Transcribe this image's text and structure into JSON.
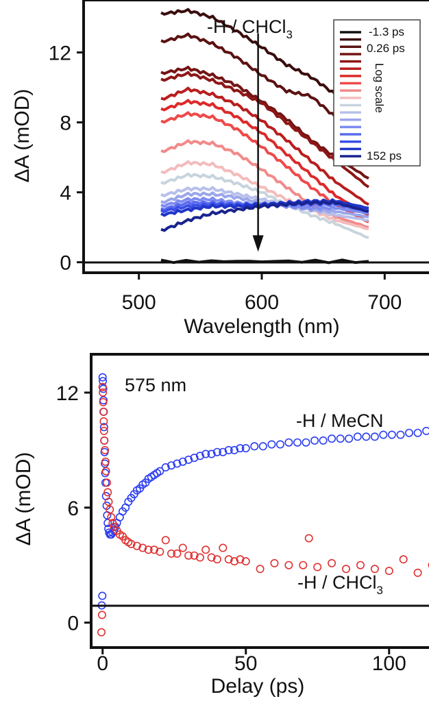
{
  "chart_data": [
    {
      "type": "line",
      "xlabel": "Wavelength (nm)",
      "ylabel": "ΔA (mOD)",
      "xlim": [
        455,
        745
      ],
      "ylim": [
        -0.6,
        15
      ],
      "xticks": [
        500,
        600,
        700
      ],
      "yticks": [
        0,
        4,
        8,
        12
      ],
      "grid": false,
      "legend": "top-right",
      "annotation": {
        "prefix": "-H / CHCl",
        "sub": "3"
      },
      "arrow": {
        "x": 597,
        "y_from": 13.1,
        "y_to": 0.6
      },
      "legend_items": {
        "top": "-1.3 ps",
        "second": "0.26 ps",
        "middle": "Log scale",
        "bottom": "152 ps"
      },
      "series": [
        {
          "color": "#111111",
          "flat": 0.05,
          "x": [
            518,
            600,
            687
          ],
          "values": [
            0.05,
            0.05,
            0.05
          ]
        },
        {
          "color": "#3a0d0d",
          "x": [
            518,
            540,
            560,
            580,
            600,
            620,
            640,
            660,
            687
          ],
          "values": [
            14.2,
            14.4,
            14.0,
            13.2,
            12.3,
            11.3,
            10.6,
            9.6,
            7.3
          ]
        },
        {
          "color": "#5b1212",
          "x": [
            518,
            540,
            560,
            580,
            600,
            620,
            640,
            660,
            687
          ],
          "values": [
            12.6,
            13.0,
            12.5,
            11.7,
            10.7,
            9.8,
            9.5,
            8.3,
            6.7
          ]
        },
        {
          "color": "#741414",
          "x": [
            518,
            540,
            560,
            580,
            600,
            620,
            640,
            660,
            687
          ],
          "values": [
            10.8,
            11.1,
            10.7,
            10.1,
            9.2,
            8.2,
            7.0,
            6.0,
            4.8
          ]
        },
        {
          "color": "#8e1616",
          "x": [
            518,
            540,
            560,
            580,
            600,
            620,
            640,
            660,
            687
          ],
          "values": [
            10.4,
            10.8,
            10.4,
            9.8,
            9.1,
            8.0,
            6.9,
            5.8,
            4.3
          ]
        },
        {
          "color": "#b81e1e",
          "x": [
            518,
            540,
            560,
            580,
            600,
            620,
            640,
            660,
            687
          ],
          "values": [
            9.3,
            9.9,
            9.6,
            9.0,
            8.1,
            7.0,
            5.8,
            4.6,
            3.3
          ]
        },
        {
          "color": "#dc2a2a",
          "x": [
            518,
            540,
            560,
            580,
            600,
            620,
            640,
            660,
            687
          ],
          "values": [
            8.7,
            9.2,
            9.0,
            8.3,
            7.4,
            6.2,
            5.0,
            3.8,
            2.7
          ]
        },
        {
          "color": "#ee4a4a",
          "x": [
            518,
            540,
            560,
            580,
            600,
            620,
            640,
            660,
            687
          ],
          "values": [
            8.0,
            8.5,
            8.3,
            7.6,
            6.6,
            5.5,
            4.3,
            3.3,
            2.3
          ]
        },
        {
          "color": "#f18a8a",
          "x": [
            518,
            540,
            560,
            580,
            600,
            620,
            640,
            660,
            687
          ],
          "values": [
            6.3,
            6.9,
            6.8,
            6.2,
            5.3,
            4.3,
            3.3,
            2.6,
            2.0
          ]
        },
        {
          "color": "#f3bcbc",
          "x": [
            518,
            540,
            560,
            580,
            600,
            620,
            640,
            660,
            687
          ],
          "values": [
            5.1,
            5.7,
            5.6,
            5.0,
            4.3,
            3.6,
            3.0,
            2.4,
            1.9
          ]
        },
        {
          "color": "#c8d4dd",
          "x": [
            518,
            540,
            560,
            580,
            600,
            620,
            640,
            660,
            687
          ],
          "values": [
            4.5,
            5.0,
            4.9,
            4.5,
            4.0,
            3.3,
            2.7,
            2.2,
            1.4
          ]
        },
        {
          "color": "#b7c0ea",
          "x": [
            518,
            540,
            560,
            580,
            600,
            620,
            640,
            660,
            687
          ],
          "values": [
            3.8,
            4.2,
            4.2,
            3.9,
            3.6,
            3.3,
            3.0,
            2.7,
            2.4
          ]
        },
        {
          "color": "#9aa6ea",
          "x": [
            518,
            540,
            560,
            580,
            600,
            620,
            640,
            660,
            687
          ],
          "values": [
            3.4,
            3.9,
            3.9,
            3.7,
            3.4,
            3.2,
            3.0,
            2.9,
            2.6
          ]
        },
        {
          "color": "#7d8bf0",
          "x": [
            518,
            540,
            560,
            580,
            600,
            620,
            640,
            660,
            687
          ],
          "values": [
            3.2,
            3.6,
            3.6,
            3.4,
            3.3,
            3.2,
            3.1,
            3.1,
            2.8
          ]
        },
        {
          "color": "#5a6bef",
          "x": [
            518,
            540,
            560,
            580,
            600,
            620,
            640,
            660,
            687
          ],
          "values": [
            3.0,
            3.4,
            3.4,
            3.3,
            3.3,
            3.3,
            3.3,
            3.3,
            2.9
          ]
        },
        {
          "color": "#3a4fe6",
          "x": [
            518,
            540,
            560,
            580,
            600,
            620,
            640,
            660,
            687
          ],
          "values": [
            2.9,
            3.2,
            3.3,
            3.3,
            3.3,
            3.4,
            3.4,
            3.4,
            3.0
          ]
        },
        {
          "color": "#2035c8",
          "x": [
            518,
            540,
            560,
            580,
            600,
            620,
            640,
            660,
            687
          ],
          "values": [
            2.7,
            3.0,
            3.2,
            3.2,
            3.3,
            3.4,
            3.5,
            3.5,
            3.1
          ]
        },
        {
          "color": "#18238f",
          "x": [
            518,
            540,
            560,
            580,
            600,
            620,
            640,
            660,
            687
          ],
          "values": [
            1.8,
            2.4,
            2.8,
            3.0,
            3.2,
            3.3,
            3.4,
            3.4,
            2.9
          ]
        }
      ]
    },
    {
      "type": "scatter",
      "xlabel": "Delay (ps)",
      "ylabel": "ΔA (mOD)",
      "xlim": [
        -4,
        118
      ],
      "ylim": [
        -1.3,
        14
      ],
      "xticks": [
        0,
        50,
        100
      ],
      "yticks": [
        0,
        6,
        12
      ],
      "grid": false,
      "annotation": "575 nm",
      "series_labels": [
        {
          "text": "-H / MeCN"
        },
        {
          "prefix": "-H / CHCl",
          "sub": "3"
        }
      ],
      "series": [
        {
          "color": "#2a3cf0",
          "x": [
            -0.3,
            -0.1,
            0.0,
            0.1,
            0.2,
            0.3,
            0.4,
            0.5,
            0.6,
            0.7,
            0.8,
            0.9,
            1.0,
            1.2,
            1.4,
            1.6,
            1.8,
            2.0,
            2.3,
            2.6,
            3.0,
            3.5,
            4.0,
            4.5,
            5,
            6,
            7,
            8,
            9,
            10,
            11,
            12,
            13,
            14,
            15,
            16,
            17,
            18,
            19,
            20,
            22,
            24,
            26,
            28,
            30,
            32,
            34,
            36,
            38,
            40,
            42,
            44,
            46,
            48,
            50,
            53,
            56,
            59,
            62,
            65,
            68,
            71,
            74,
            77,
            80,
            83,
            86,
            89,
            92,
            95,
            98,
            101,
            104,
            107,
            110,
            113,
            116
          ],
          "values": [
            0.9,
            1.4,
            12.8,
            12.6,
            12.2,
            11.6,
            11.0,
            10.2,
            9.5,
            8.9,
            8.3,
            7.8,
            7.3,
            6.6,
            6.1,
            5.6,
            5.2,
            4.9,
            4.7,
            4.6,
            4.6,
            4.7,
            4.8,
            5.0,
            5.2,
            5.5,
            5.8,
            6.0,
            6.3,
            6.5,
            6.7,
            6.9,
            7.0,
            7.2,
            7.3,
            7.5,
            7.6,
            7.7,
            7.8,
            7.9,
            8.1,
            8.2,
            8.3,
            8.4,
            8.5,
            8.6,
            8.7,
            8.8,
            8.8,
            8.9,
            8.9,
            9.0,
            9.0,
            9.1,
            9.1,
            9.2,
            9.2,
            9.3,
            9.3,
            9.4,
            9.4,
            9.4,
            9.5,
            9.5,
            9.6,
            9.6,
            9.6,
            9.7,
            9.7,
            9.7,
            9.8,
            9.8,
            9.8,
            9.9,
            9.9,
            10.0,
            10.0
          ]
        },
        {
          "color": "#e03030",
          "x": [
            -0.4,
            -0.2,
            0.0,
            0.1,
            0.2,
            0.3,
            0.4,
            0.5,
            0.6,
            0.8,
            1.0,
            1.2,
            1.5,
            1.8,
            2.1,
            2.5,
            3.0,
            3.5,
            4.0,
            5,
            6,
            7,
            8,
            9,
            10,
            12,
            14,
            16,
            18,
            20,
            22,
            24,
            26,
            28,
            30,
            32,
            34,
            36,
            38,
            40,
            42,
            44,
            46,
            48,
            50,
            55,
            60,
            65,
            70,
            72,
            75,
            80,
            85,
            90,
            95,
            100,
            105,
            110,
            115
          ],
          "values": [
            -0.5,
            0.4,
            12.3,
            12.0,
            11.5,
            11.0,
            10.5,
            10.0,
            9.5,
            9.0,
            8.4,
            7.9,
            7.3,
            6.8,
            6.3,
            5.9,
            5.5,
            5.2,
            5.0,
            4.8,
            4.6,
            4.5,
            4.3,
            4.2,
            4.1,
            4.0,
            3.9,
            3.8,
            3.8,
            3.7,
            4.3,
            3.6,
            3.6,
            3.9,
            3.5,
            3.5,
            3.4,
            3.8,
            3.4,
            3.3,
            3.9,
            3.3,
            3.2,
            3.3,
            3.2,
            2.8,
            3.1,
            3.0,
            3.0,
            4.4,
            2.9,
            3.1,
            2.8,
            3.0,
            2.8,
            2.7,
            3.3,
            2.6,
            3.0
          ]
        }
      ]
    }
  ]
}
